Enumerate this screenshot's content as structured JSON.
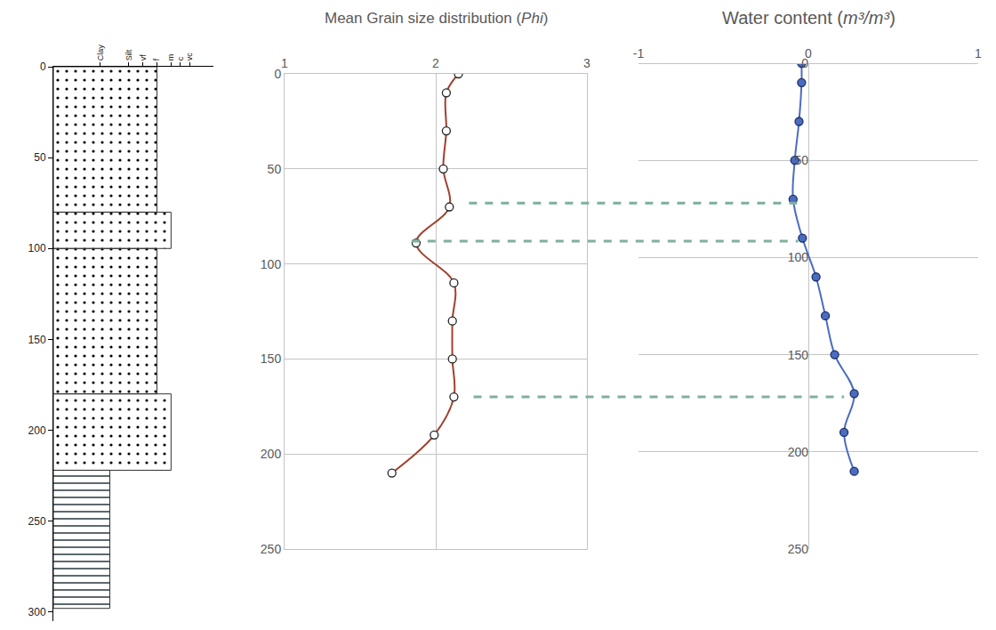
{
  "chart_data": [
    {
      "type": "bar",
      "orientation": "horizontal",
      "xlim": [
        0,
        3.4
      ],
      "xticks": [
        {
          "value": 1,
          "label": "Clay"
        },
        {
          "value": 1.6,
          "label": "Silt"
        },
        {
          "value": 1.9,
          "label": "vf"
        },
        {
          "value": 2.2,
          "label": "f"
        },
        {
          "value": 2.5,
          "label": "m"
        },
        {
          "value": 2.7,
          "label": "c"
        },
        {
          "value": 2.9,
          "label": "vc"
        }
      ],
      "ylim": [
        0,
        305
      ],
      "yticks": [
        0,
        50,
        100,
        150,
        200,
        250,
        300
      ],
      "grid": false,
      "beds": [
        {
          "top": 0,
          "bottom": 80,
          "value": 2.2,
          "color": "#fbf034",
          "marker": "dots"
        },
        {
          "top": 80,
          "bottom": 100,
          "value": 2.5,
          "color": "#fbf034",
          "marker": "dots"
        },
        {
          "top": 100,
          "bottom": 180,
          "value": 2.2,
          "color": "#fbf034",
          "marker": "dots"
        },
        {
          "top": 180,
          "bottom": 222,
          "value": 2.5,
          "color": "#fbf034",
          "marker": "dots"
        },
        {
          "top": 222,
          "bottom": 298,
          "value": 1.2,
          "color": "#5b7684",
          "marker": "dashes"
        }
      ]
    },
    {
      "type": "line",
      "title": "Mean Grain size distribution (Phi)",
      "xlim": [
        1,
        3
      ],
      "xticks": [
        1,
        2,
        3
      ],
      "ylim": [
        0,
        250
      ],
      "yticks": [
        0,
        50,
        100,
        150,
        200,
        250
      ],
      "grid": true,
      "series": [
        {
          "color": "#a0402e",
          "marker": "open_circle",
          "line_style": "solid",
          "x": [
            2.15,
            2.07,
            2.07,
            2.05,
            2.09,
            1.87,
            2.12,
            2.11,
            2.11,
            2.12,
            1.99,
            1.71
          ],
          "y": [
            0,
            10,
            30,
            50,
            70,
            89,
            110,
            130,
            150,
            170,
            190,
            210
          ]
        }
      ]
    },
    {
      "type": "line",
      "title": "Water content (m³/m³)",
      "xlim": [
        -1,
        1
      ],
      "xticks": [
        -1,
        0,
        1
      ],
      "ylim": [
        0,
        250
      ],
      "yticks": [
        0,
        50,
        100,
        150,
        200,
        250
      ],
      "grid": true,
      "series": [
        {
          "color": "#4b6cc1",
          "marker": "circle",
          "line_style": "solid",
          "x": [
            -0.04,
            -0.04,
            -0.055,
            -0.08,
            -0.09,
            -0.035,
            0.045,
            0.1,
            0.155,
            0.27,
            0.21,
            0.27
          ],
          "y": [
            0,
            10,
            30,
            50,
            70,
            90,
            110,
            130,
            150,
            170,
            190,
            210
          ]
        }
      ]
    }
  ],
  "connectors": {
    "color": "#7fb09c",
    "line_style": "dash",
    "lines": [
      {
        "depth": 68,
        "from": 2.22,
        "to": -0.06
      },
      {
        "depth": 88,
        "from": 1.84,
        "to": -0.06
      },
      {
        "depth": 170,
        "from": 2.25,
        "to": 0.21
      }
    ]
  }
}
